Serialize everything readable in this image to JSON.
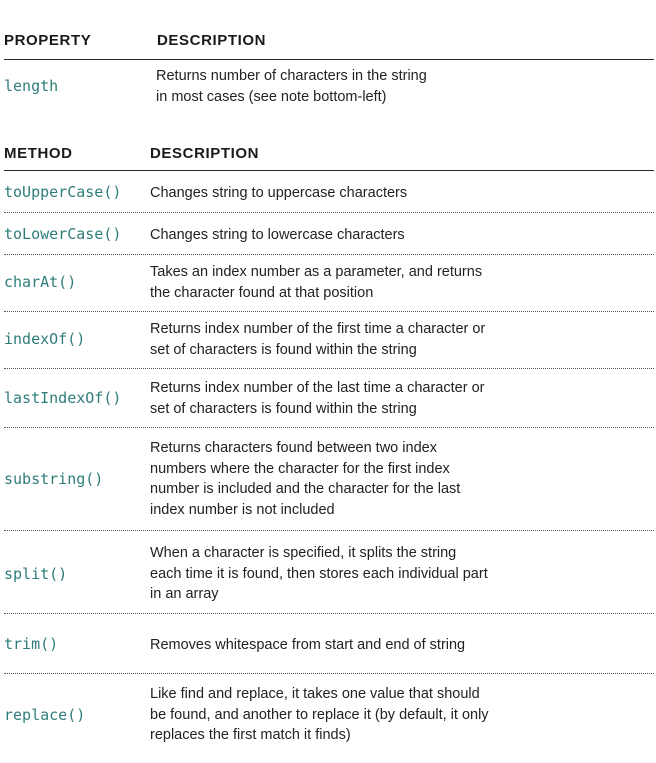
{
  "property_table": {
    "header": {
      "col1": "PROPERTY",
      "col2": "DESCRIPTION"
    },
    "rows": [
      {
        "name": "length",
        "description": [
          "Returns number of characters in the string",
          "in most cases (see note bottom-left)"
        ]
      }
    ]
  },
  "method_table": {
    "header": {
      "col1": "METHOD",
      "col2": "DESCRIPTION"
    },
    "rows": [
      {
        "name": "toUpperCase()",
        "description": [
          "Changes string to uppercase characters"
        ]
      },
      {
        "name": "toLowerCase()",
        "description": [
          "Changes string to lowercase characters"
        ]
      },
      {
        "name": "charAt()",
        "description": [
          "Takes an index number as a parameter, and returns",
          "the character found at that position"
        ]
      },
      {
        "name": "indexOf()",
        "description": [
          "Returns index number of the first time a character or",
          "set of characters is found within the string"
        ]
      },
      {
        "name": "lastIndexOf()",
        "description": [
          "Returns index number of the last time a character or",
          "set of characters is found within the string"
        ]
      },
      {
        "name": "substring()",
        "description": [
          "Returns characters found between two index",
          "numbers where the character for the first index",
          "number is included and the character for the last",
          "index number is not included"
        ]
      },
      {
        "name": "split()",
        "description": [
          "When a character is specified, it splits the string",
          "each time it is found, then stores each individual part",
          "in an array"
        ]
      },
      {
        "name": "trim()",
        "description": [
          "Removes whitespace from start and end of string"
        ]
      },
      {
        "name": "replace()",
        "description": [
          "Like find and replace, it takes one value that should",
          "be found, and another to replace it (by default, it only",
          "replaces the first match it finds)"
        ]
      }
    ]
  }
}
